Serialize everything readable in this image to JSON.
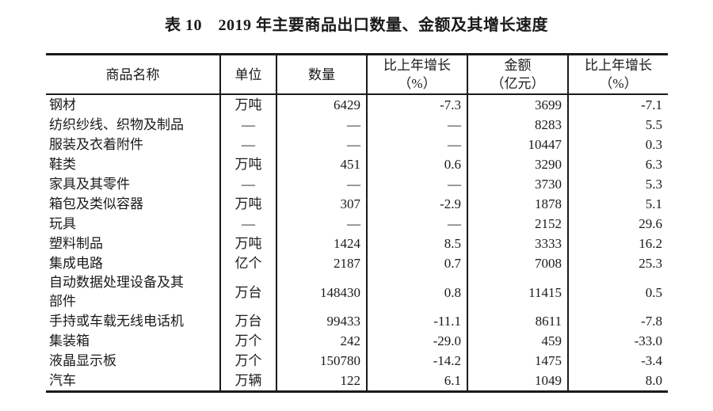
{
  "page_title": "表 10　2019 年主要商品出口数量、金额及其增长速度",
  "colors": {
    "text": "#1a1a1a",
    "background": "#ffffff",
    "border": "#1a1a1a"
  },
  "table": {
    "headers": [
      "商品名称",
      "单位",
      "数量",
      "比上年增长\n（%）",
      "金额\n（亿元）",
      "比上年增长\n（%）"
    ],
    "rows": [
      [
        "钢材",
        "万吨",
        "6429",
        "-7.3",
        "3699",
        "-7.1"
      ],
      [
        "纺织纱线、织物及制品",
        "—",
        "—",
        "—",
        "8283",
        "5.5"
      ],
      [
        "服装及衣着附件",
        "—",
        "—",
        "—",
        "10447",
        "0.3"
      ],
      [
        "鞋类",
        "万吨",
        "451",
        "0.6",
        "3290",
        "6.3"
      ],
      [
        "家具及其零件",
        "—",
        "—",
        "—",
        "3730",
        "5.3"
      ],
      [
        "箱包及类似容器",
        "万吨",
        "307",
        "-2.9",
        "1878",
        "5.1"
      ],
      [
        "玩具",
        "—",
        "—",
        "—",
        "2152",
        "29.6"
      ],
      [
        "塑料制品",
        "万吨",
        "1424",
        "8.5",
        "3333",
        "16.2"
      ],
      [
        "集成电路",
        "亿个",
        "2187",
        "0.7",
        "7008",
        "25.3"
      ],
      [
        "自动数据处理设备及其\n部件",
        "万台",
        "148430",
        "0.8",
        "11415",
        "0.5"
      ],
      [
        "手持或车载无线电话机",
        "万台",
        "99433",
        "-11.1",
        "8611",
        "-7.8"
      ],
      [
        "集装箱",
        "万个",
        "242",
        "-29.0",
        "459",
        "-33.0"
      ],
      [
        "液晶显示板",
        "万个",
        "150780",
        "-14.2",
        "1475",
        "-3.4"
      ],
      [
        "汽车",
        "万辆",
        "122",
        "6.1",
        "1049",
        "8.0"
      ]
    ]
  }
}
